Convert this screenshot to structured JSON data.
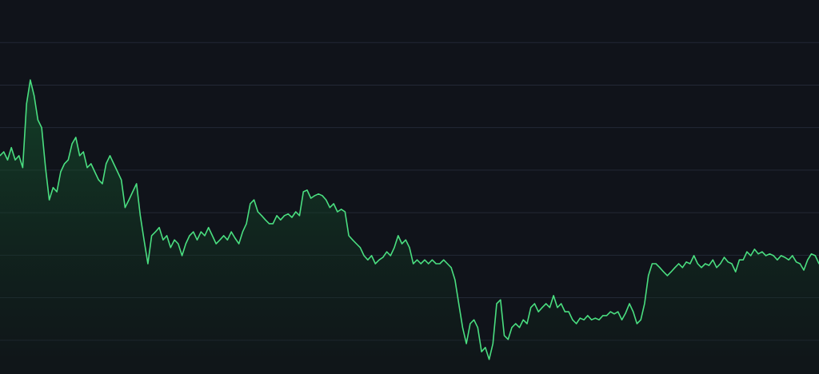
{
  "chart_data": {
    "type": "area",
    "title": "",
    "xlabel": "",
    "ylabel": "",
    "ylim": [
      0,
      90
    ],
    "grid": true,
    "gridlines": [
      10,
      20,
      30,
      40,
      50,
      60,
      70,
      80
    ],
    "legend": "none",
    "colors": {
      "background": "#10131a",
      "grid": "#232836",
      "line": "#4ade80",
      "fill": "#14532d"
    },
    "values": [
      53.4,
      54.3,
      52.4,
      55.3,
      52.4,
      53.4,
      50.6,
      65.6,
      71.2,
      67.5,
      61.8,
      60,
      50.6,
      43,
      45.9,
      44.9,
      49.6,
      51.5,
      52.4,
      56.2,
      57.7,
      53.4,
      54.3,
      50.6,
      51.5,
      49.6,
      47.7,
      46.8,
      51.5,
      53.4,
      51.5,
      49.6,
      47.7,
      41.2,
      43,
      44.9,
      46.8,
      39.3,
      33.6,
      28,
      34.6,
      35.5,
      36.5,
      33.6,
      34.6,
      31.8,
      33.6,
      32.7,
      29.9,
      32.7,
      34.6,
      35.5,
      33.6,
      35.5,
      34.6,
      36.5,
      34.6,
      32.7,
      33.6,
      34.6,
      33.6,
      35.5,
      34,
      32.7,
      35.5,
      37.4,
      42.1,
      43,
      40.2,
      39.3,
      38.3,
      37.4,
      37.4,
      39.3,
      38.3,
      39.3,
      39.7,
      38.9,
      40.2,
      39.3,
      44.9,
      45.3,
      43.4,
      44,
      44.4,
      44,
      43,
      41.2,
      42.1,
      40.2,
      40.8,
      40.2,
      34.6,
      33.6,
      32.7,
      31.8,
      29.9,
      28.9,
      29.9,
      28,
      28.9,
      29.5,
      30.8,
      29.9,
      31.8,
      34.6,
      32.7,
      33.6,
      31.8,
      28,
      28.9,
      28,
      28.9,
      28,
      28.9,
      28,
      28,
      28.9,
      28,
      27.1,
      24.2,
      18.6,
      13,
      9.2,
      13.9,
      14.8,
      13,
      7.3,
      8.3,
      5.5,
      9.2,
      18.6,
      19.5,
      11.1,
      10.2,
      13,
      13.9,
      13,
      14.8,
      13.9,
      17.7,
      18.6,
      16.7,
      17.7,
      18.6,
      17.7,
      20.5,
      17.7,
      18.6,
      16.7,
      16.7,
      14.8,
      13.9,
      15.2,
      14.8,
      15.8,
      14.8,
      15.2,
      14.8,
      15.8,
      15.8,
      16.7,
      16.2,
      16.7,
      14.8,
      16.4,
      18.6,
      16.7,
      13.9,
      14.8,
      18.6,
      25.2,
      28,
      28,
      27.1,
      26.1,
      25.2,
      26.1,
      27.1,
      28,
      27.1,
      28.4,
      28,
      29.9,
      28,
      27.1,
      28,
      27.6,
      28.9,
      27.1,
      28,
      29.5,
      28.4,
      28,
      26.1,
      28.9,
      28.9,
      30.8,
      29.9,
      31.4,
      30.3,
      30.8,
      29.9,
      30.3,
      29.9,
      28.9,
      29.9,
      29.5,
      28.9,
      29.9,
      28.4,
      28,
      26.5,
      28.9,
      30.3,
      29.9,
      28
    ]
  }
}
